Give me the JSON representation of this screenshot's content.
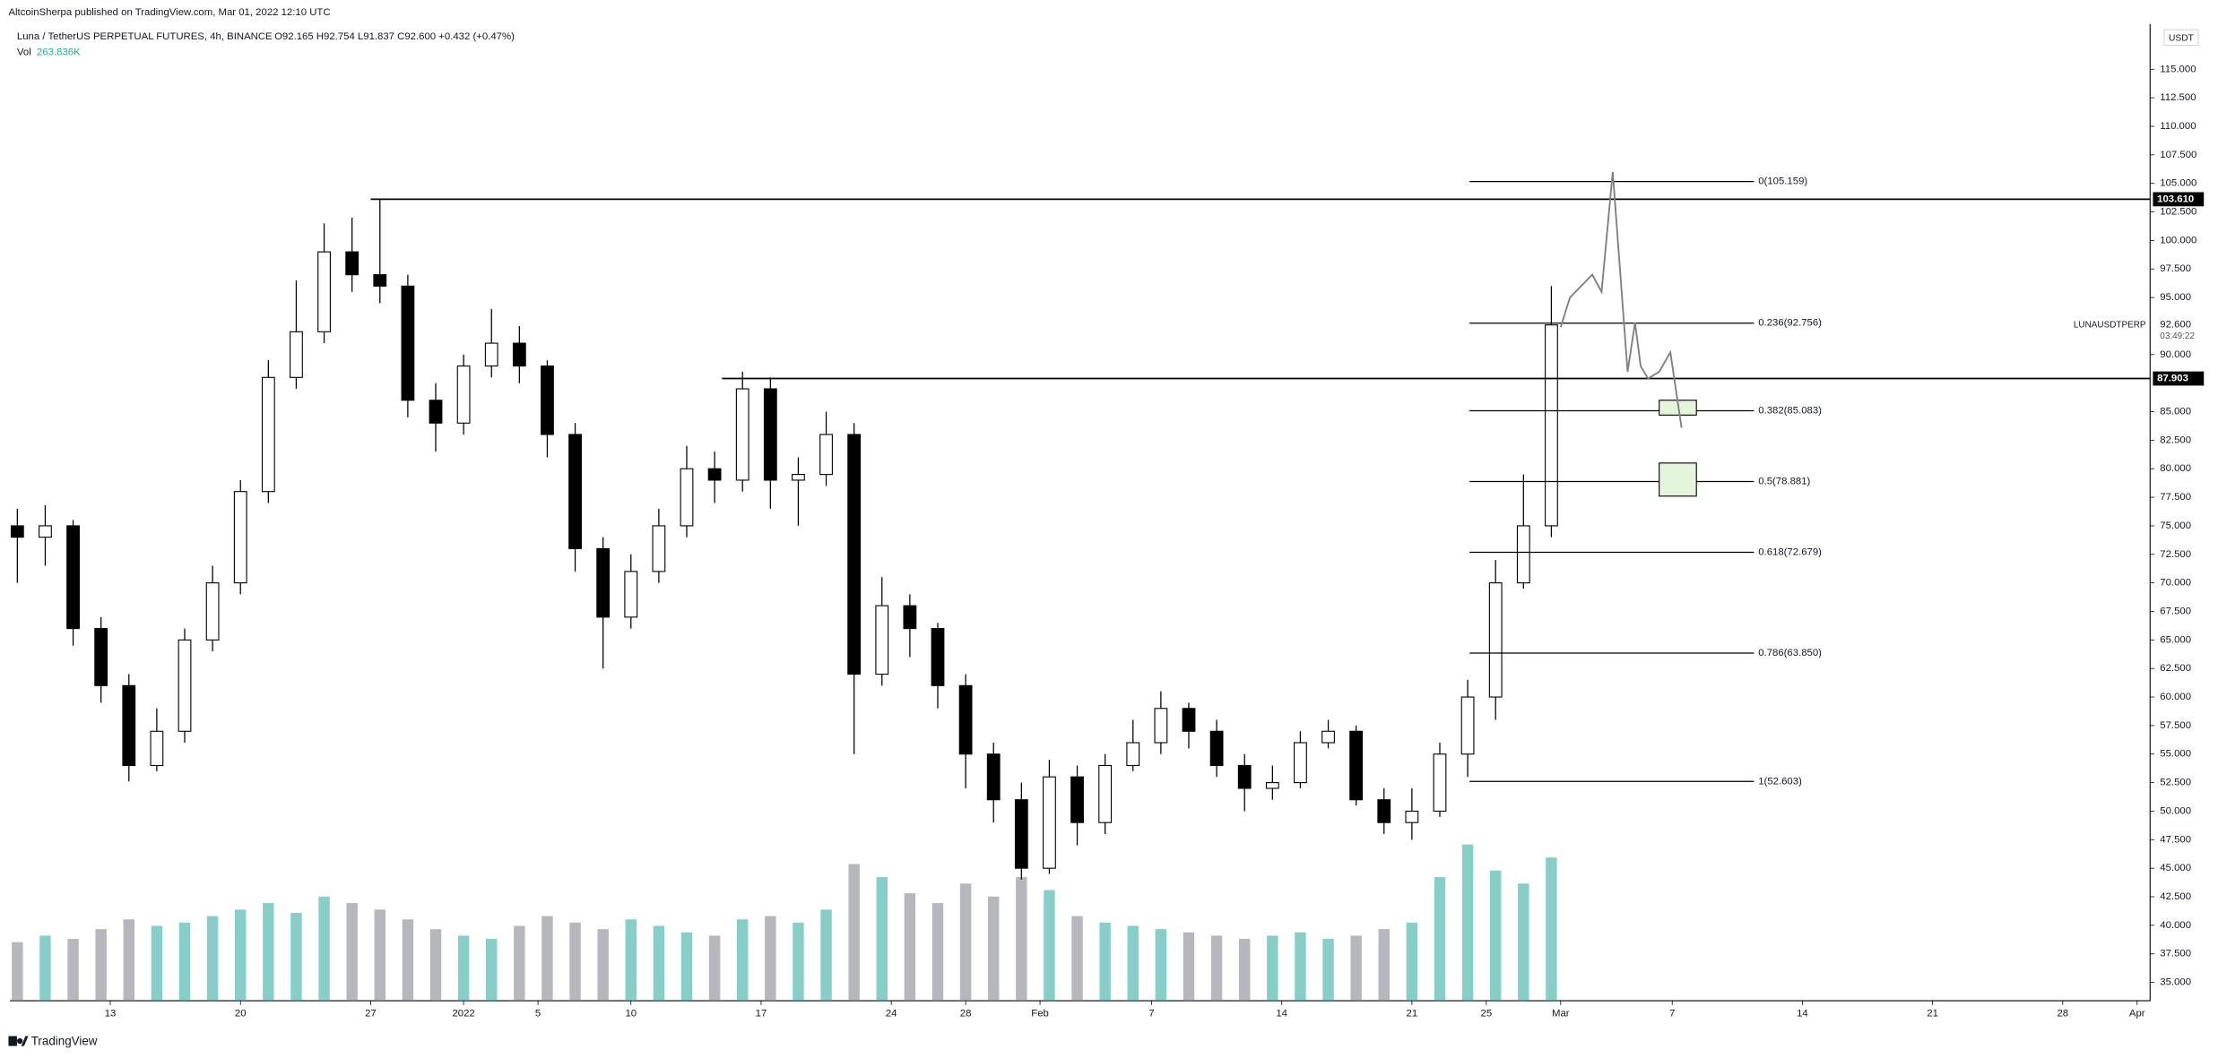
{
  "chart_data": {
    "type": "candlestick",
    "publisher": "AltcoinSherpa published on TradingView.com, Mar 01, 2022 12:10 UTC",
    "symbol_title": "Luna / TetherUS PERPETUAL FUTURES, 4h, BINANCE",
    "ohlc_text": "O92.165 H92.754 L91.837 C92.600 +0.432 (+0.47%)",
    "volume_label": "Vol",
    "volume_text": "263.836K",
    "currency": "USDT",
    "footer": "TradingView",
    "up_color": "#ffffff",
    "down_color": "#000000",
    "wick_color": "#000000",
    "volume_up_color": "#26a69a",
    "volume_down_color": "#787b86",
    "x": [
      -5,
      -3.5,
      -2,
      -0.5,
      1,
      2.5,
      4,
      5.5,
      7,
      8.5,
      10,
      11.5,
      13,
      14.5,
      16,
      17.5,
      19,
      20.5,
      22,
      23.5,
      25,
      26.5,
      28,
      29.5,
      31,
      32.5,
      34,
      35.5,
      37,
      38.5,
      40,
      41.5,
      43,
      44.5,
      46,
      47.5,
      49,
      50.5,
      52,
      53.5,
      55,
      56.5,
      58,
      59.5,
      61,
      62.5,
      64,
      65.5,
      67,
      68.5,
      70,
      71.5,
      73,
      74.5,
      76,
      77.5
    ],
    "open": [
      75,
      74,
      75,
      66,
      61,
      54,
      57,
      65,
      70,
      78,
      88,
      92,
      99,
      97,
      96,
      86,
      84,
      89,
      91,
      89,
      83,
      73,
      67,
      71,
      75,
      80,
      79,
      87,
      79,
      79.5,
      83,
      62,
      68,
      66,
      61,
      55,
      51,
      45,
      53,
      49,
      54,
      56,
      59,
      57,
      54,
      52,
      52.5,
      56,
      57,
      51,
      49,
      50,
      55,
      60,
      70,
      75
    ],
    "high": [
      76.5,
      76.8,
      75.5,
      67,
      62,
      59,
      66,
      71.5,
      79,
      89.5,
      96.5,
      101.5,
      102,
      103.6,
      97,
      87.5,
      90,
      94,
      92.5,
      89.5,
      84,
      74,
      72.5,
      76.5,
      82,
      81.5,
      88.5,
      88,
      81,
      85,
      84,
      70.5,
      69,
      66.5,
      62,
      56,
      52.5,
      54.5,
      54,
      55,
      58,
      60.5,
      59.5,
      58,
      55,
      54,
      57,
      58,
      57.5,
      52,
      52,
      56,
      61.5,
      72,
      79.5,
      96
    ],
    "low": [
      70,
      71.5,
      64.5,
      59.5,
      52.6,
      53.5,
      56,
      64,
      69,
      77,
      87,
      91,
      95.5,
      94.5,
      84.5,
      81.5,
      83,
      88,
      87.5,
      81,
      71,
      62.5,
      66,
      70,
      74,
      77,
      78,
      76.5,
      75,
      78.5,
      55,
      61,
      63.5,
      59,
      52,
      49,
      44,
      44.5,
      47,
      48,
      53.5,
      55,
      55.5,
      53,
      50,
      51,
      52,
      55.5,
      50.5,
      48,
      47.5,
      49.5,
      53,
      58,
      69.5,
      74
    ],
    "close": [
      74,
      75,
      66,
      61,
      54,
      57,
      65,
      70,
      78,
      88,
      92,
      99,
      97,
      96,
      86,
      84,
      89,
      91,
      89,
      83,
      73,
      67,
      71,
      75,
      80,
      79,
      87,
      79,
      79.5,
      83,
      62,
      68,
      66,
      61,
      55,
      51,
      45,
      53,
      49,
      54,
      56,
      59,
      57,
      54,
      52,
      52.5,
      56,
      57,
      51,
      49,
      50,
      55,
      60,
      70,
      75,
      92.6
    ],
    "volume": [
      180,
      200,
      190,
      220,
      250,
      230,
      240,
      260,
      280,
      300,
      270,
      320,
      300,
      280,
      250,
      220,
      200,
      190,
      230,
      260,
      240,
      220,
      250,
      230,
      210,
      200,
      250,
      260,
      240,
      280,
      420,
      380,
      330,
      300,
      360,
      320,
      380,
      340,
      260,
      240,
      230,
      220,
      210,
      200,
      190,
      200,
      210,
      190,
      200,
      220,
      240,
      380,
      480,
      400,
      360,
      440
    ],
    "volume_ylim": [
      0,
      3000
    ],
    "xlim": [
      -5.4,
      109.7
    ],
    "ylim": [
      33.39,
      118.96
    ],
    "xticks": [
      {
        "value": 0,
        "label": "13"
      },
      {
        "value": 7,
        "label": "20"
      },
      {
        "value": 14,
        "label": "27"
      },
      {
        "value": 19,
        "label": "2022"
      },
      {
        "value": 23,
        "label": "5"
      },
      {
        "value": 28,
        "label": "10"
      },
      {
        "value": 35,
        "label": "17"
      },
      {
        "value": 42,
        "label": "24"
      },
      {
        "value": 46,
        "label": "28"
      },
      {
        "value": 50,
        "label": "Feb"
      },
      {
        "value": 56,
        "label": "7"
      },
      {
        "value": 63,
        "label": "14"
      },
      {
        "value": 70,
        "label": "21"
      },
      {
        "value": 74,
        "label": "25"
      },
      {
        "value": 78,
        "label": "Mar"
      },
      {
        "value": 84,
        "label": "7"
      },
      {
        "value": 91,
        "label": "14"
      },
      {
        "value": 98,
        "label": "21"
      },
      {
        "value": 105,
        "label": "28"
      },
      {
        "value": 109,
        "label": "Apr"
      }
    ],
    "yticks": [
      {
        "value": 35,
        "label": "35.000"
      },
      {
        "value": 37.5,
        "label": "37.500"
      },
      {
        "value": 40,
        "label": "40.000"
      },
      {
        "value": 42.5,
        "label": "42.500"
      },
      {
        "value": 45,
        "label": "45.000"
      },
      {
        "value": 47.5,
        "label": "47.500"
      },
      {
        "value": 50,
        "label": "50.000"
      },
      {
        "value": 52.5,
        "label": "52.500"
      },
      {
        "value": 55,
        "label": "55.000"
      },
      {
        "value": 57.5,
        "label": "57.500"
      },
      {
        "value": 60,
        "label": "60.000"
      },
      {
        "value": 62.5,
        "label": "62.500"
      },
      {
        "value": 65,
        "label": "65.000"
      },
      {
        "value": 67.5,
        "label": "67.500"
      },
      {
        "value": 70,
        "label": "70.000"
      },
      {
        "value": 72.5,
        "label": "72.500"
      },
      {
        "value": 75,
        "label": "75.000"
      },
      {
        "value": 77.5,
        "label": "77.500"
      },
      {
        "value": 80,
        "label": "80.000"
      },
      {
        "value": 82.5,
        "label": "82.500"
      },
      {
        "value": 85,
        "label": "85.000"
      },
      {
        "value": 90,
        "label": "90.000"
      },
      {
        "value": 95,
        "label": "95.000"
      },
      {
        "value": 97.5,
        "label": "97.500"
      },
      {
        "value": 100,
        "label": "100.000"
      },
      {
        "value": 102.5,
        "label": "102.500"
      },
      {
        "value": 105,
        "label": "105.000"
      },
      {
        "value": 107.5,
        "label": "107.500"
      },
      {
        "value": 110,
        "label": "110.000"
      },
      {
        "value": 112.5,
        "label": "112.500"
      },
      {
        "value": 115,
        "label": "115.000"
      }
    ],
    "levels": [
      {
        "value": 103.61,
        "label": "103.610",
        "from": 14
      },
      {
        "value": 87.903,
        "label": "87.903",
        "from": 32.9
      }
    ],
    "last": {
      "value": 92.6,
      "label": "92.600",
      "countdown": "03:49:22",
      "symbol": "LUNAUSDTPERP"
    },
    "fib_x": [
      73.1,
      88.4
    ],
    "fib": [
      {
        "value": 105.159,
        "label": "0(105.159)"
      },
      {
        "value": 92.756,
        "label": "0.236(92.756)"
      },
      {
        "value": 85.083,
        "label": "0.382(85.083)"
      },
      {
        "value": 78.881,
        "label": "0.5(78.881)"
      },
      {
        "value": 72.679,
        "label": "0.618(72.679)"
      },
      {
        "value": 63.85,
        "label": "0.786(63.850)"
      },
      {
        "value": 52.603,
        "label": "1(52.603)"
      }
    ],
    "projection": {
      "color": "#808080",
      "x": [
        78.0,
        78.5,
        79.7,
        80.2,
        80.8,
        81.6,
        82.0,
        82.3,
        82.7,
        83.3,
        83.9,
        84.5
      ],
      "values": [
        92.4,
        95,
        97,
        95.5,
        106,
        88.5,
        92.8,
        89,
        87.9,
        88.5,
        90.2,
        83.6
      ]
    },
    "zones": [
      {
        "color": "#e4f5dc",
        "x": [
          83.3,
          85.3
        ],
        "y": [
          84.7,
          86.0
        ]
      },
      {
        "color": "#e4f5dc",
        "x": [
          83.3,
          85.3
        ],
        "y": [
          77.6,
          80.5
        ]
      }
    ]
  }
}
